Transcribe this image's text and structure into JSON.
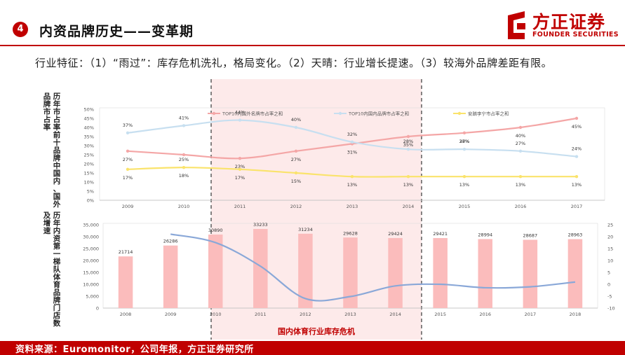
{
  "header": {
    "section_number": "4",
    "title": "内资品牌历史——变革期",
    "logo_cn": "方正证券",
    "logo_en": "FOUNDER SECURITIES"
  },
  "description": "行业特征：（1）“雨过”：库存危机洗礼，格局变化。（2）天晴：行业增长提速。（3）较海外品牌差距有限。",
  "left_labels": {
    "top_col1": "历年市占率前十品牌中国内、国外",
    "top_col2": "品牌市占率",
    "bottom_col1": "历年内资第一梯队体育品牌门店数",
    "bottom_col2": "及增速"
  },
  "highlight_label": "国内体育行业库存危机",
  "footer": "资料来源：Euromonitor，公司年报，方正证券研究所",
  "colors": {
    "brand": "#c00000",
    "foreign_line": "#f4a6a6",
    "domestic_line": "#c7dff0",
    "anta_line": "#fae36b",
    "bars": "#fbbcbc",
    "growth_line": "#8aa8d8",
    "highlight_fill": "#fdeaea"
  },
  "chart_data": [
    {
      "type": "line",
      "x": [
        "2009",
        "2010",
        "2011",
        "2012",
        "2013",
        "2014",
        "2015",
        "2016",
        "2017"
      ],
      "ylim": [
        0,
        50
      ],
      "yticks": [
        "0%",
        "5%",
        "10%",
        "15%",
        "20%",
        "25%",
        "30%",
        "35%",
        "40%",
        "45%",
        "50%"
      ],
      "legend_position": "top",
      "series": [
        {
          "name": "TOP10内国外名牌市占率之和",
          "values": [
            27,
            25,
            23,
            27,
            31,
            35,
            37,
            40,
            45
          ],
          "labels": [
            "27%",
            "",
            "23%",
            "27%",
            "31%",
            "35%",
            "37%",
            "40%",
            "45%"
          ]
        },
        {
          "name": "TOP10内国内品牌市占率之和",
          "values": [
            37,
            41,
            44,
            40,
            32,
            28,
            28,
            27,
            24
          ],
          "labels": [
            "37%",
            "41%",
            "44%",
            "40%",
            "32%",
            "28%",
            "28%",
            "27%",
            "24%"
          ]
        },
        {
          "name": "安踏李宁市占率之和",
          "values": [
            17,
            18,
            17,
            15,
            13,
            13,
            13,
            13,
            13
          ],
          "labels": [
            "17%",
            "18%",
            "17%",
            "15%",
            "13%",
            "13%",
            "13%",
            "13%",
            "13%"
          ]
        }
      ],
      "extra_labels": [
        {
          "x": "2010",
          "text": "25%"
        }
      ]
    },
    {
      "type": "bar",
      "categories": [
        "2008",
        "2009",
        "2010",
        "2011",
        "2012",
        "2013",
        "2014",
        "2015",
        "2016",
        "2017",
        "2018"
      ],
      "values": [
        21714,
        26286,
        30890,
        33233,
        31234,
        29628,
        29424,
        29421,
        28994,
        28687,
        28963
      ],
      "ylim": [
        0,
        35000
      ],
      "yticks": [
        "0",
        "5,000",
        "10,000",
        "15,000",
        "20,000",
        "25,000",
        "30,000",
        "35,000"
      ],
      "secondary_axis": {
        "ylim": [
          -10,
          25
        ],
        "yticks": [
          "-10",
          "-5",
          "0",
          "5",
          "10",
          "15",
          "20",
          "25"
        ]
      },
      "growth_line": [
        null,
        21.06,
        17.51,
        7.58,
        -6.02,
        -5.14,
        -0.69,
        -0.01,
        -1.45,
        -1.06,
        0.96
      ]
    }
  ]
}
